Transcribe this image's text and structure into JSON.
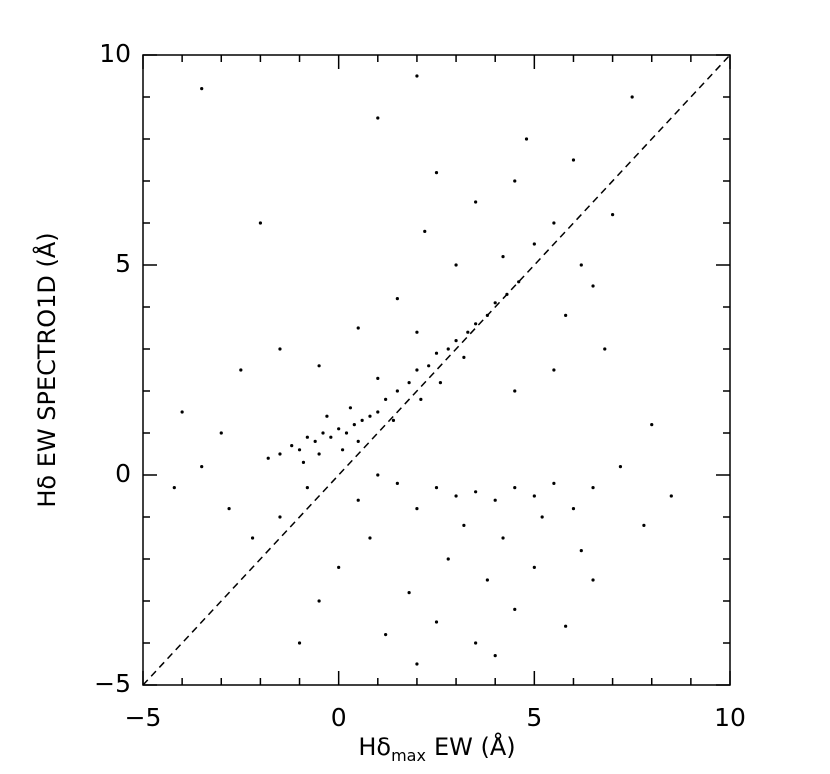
{
  "chart_data": {
    "type": "scatter",
    "xlabel": {
      "base": "Hδ",
      "subscript": "max",
      "rest": "EW (Å)"
    },
    "ylabel": "Hδ EW SPECTRO1D (Å)",
    "xlim": [
      -5,
      10
    ],
    "ylim": [
      -5,
      10
    ],
    "xticks": [
      {
        "value": -5,
        "label": "−5"
      },
      0,
      5,
      10
    ],
    "yticks": [
      {
        "value": -5,
        "label": "−5"
      },
      0,
      5,
      10
    ],
    "xminorticks": [
      -4,
      -3,
      -2,
      -1,
      1,
      2,
      3,
      4,
      6,
      7,
      8,
      9
    ],
    "yminorticks": [
      -4,
      -3,
      -2,
      -1,
      1,
      2,
      3,
      4,
      6,
      7,
      8,
      9
    ],
    "reference_line": {
      "slope": 1,
      "intercept": 0,
      "dashed": true
    },
    "color": "#000000",
    "x": [
      -1.5,
      -1.2,
      -1,
      -0.8,
      -0.6,
      -0.4,
      -0.2,
      0,
      0.2,
      0.4,
      0.6,
      0.8,
      1,
      -1.8,
      -0.9,
      -0.5,
      0.1,
      0.5,
      -0.3,
      0.3,
      1.2,
      1.5,
      1.8,
      2,
      2.3,
      2.5,
      2.8,
      3,
      3.3,
      3.5,
      3.8,
      4,
      4.3,
      4.6,
      1.4,
      2.1,
      2.6,
      3.2,
      1,
      2,
      4.2,
      5,
      5.5,
      3.5,
      4.5,
      2.5,
      6.2,
      5.8,
      6.5,
      3,
      1.5,
      0.5,
      -1.5,
      -2.5,
      -0.5,
      7,
      6,
      4.8,
      1,
      -3.5,
      2,
      7.5,
      -2,
      -4,
      5.5,
      4.5,
      6.8,
      2.2,
      2.5,
      3,
      3.5,
      4,
      4.5,
      5,
      5.5,
      2,
      3.2,
      4.2,
      5.2,
      6,
      6.5,
      7.2,
      1.5,
      2.8,
      3.8,
      5,
      6.2,
      1.8,
      2.5,
      4.5,
      5.8,
      3.5,
      0.8,
      0,
      -0.5,
      -1,
      1.2,
      7.8,
      8.5,
      -3.5,
      -4.2,
      -2.8,
      -2.2,
      -1.5,
      -0.8,
      0.5,
      1,
      -3,
      8,
      6.5,
      4,
      2
    ],
    "y": [
      0.5,
      0.7,
      0.6,
      0.9,
      0.8,
      1,
      0.9,
      1.1,
      1,
      1.2,
      1.3,
      1.4,
      1.5,
      0.4,
      0.3,
      0.5,
      0.6,
      0.8,
      1.4,
      1.6,
      1.8,
      2,
      2.2,
      2.5,
      2.6,
      2.9,
      3,
      3.2,
      3.4,
      3.6,
      3.8,
      4.1,
      4.3,
      4.6,
      1.3,
      1.8,
      2.2,
      2.8,
      2.3,
      3.4,
      5.2,
      5.5,
      6,
      6.5,
      7,
      7.2,
      5,
      3.8,
      4.5,
      5,
      4.2,
      3.5,
      3,
      2.5,
      2.6,
      6.2,
      7.5,
      8,
      8.5,
      9.2,
      9.5,
      9,
      6,
      1.5,
      2.5,
      2,
      3,
      5.8,
      -0.3,
      -0.5,
      -0.4,
      -0.6,
      -0.3,
      -0.5,
      -0.2,
      -0.8,
      -1.2,
      -1.5,
      -1,
      -0.8,
      -0.3,
      0.2,
      -0.2,
      -2,
      -2.5,
      -2.2,
      -1.8,
      -2.8,
      -3.5,
      -3.2,
      -3.6,
      -4,
      -1.5,
      -2.2,
      -3,
      -4,
      -3.8,
      -1.2,
      -0.5,
      0.2,
      -0.3,
      -0.8,
      -1.5,
      -1,
      -0.3,
      -0.6,
      0,
      1,
      1.2,
      -2.5,
      -4.3,
      -4.5
    ]
  }
}
